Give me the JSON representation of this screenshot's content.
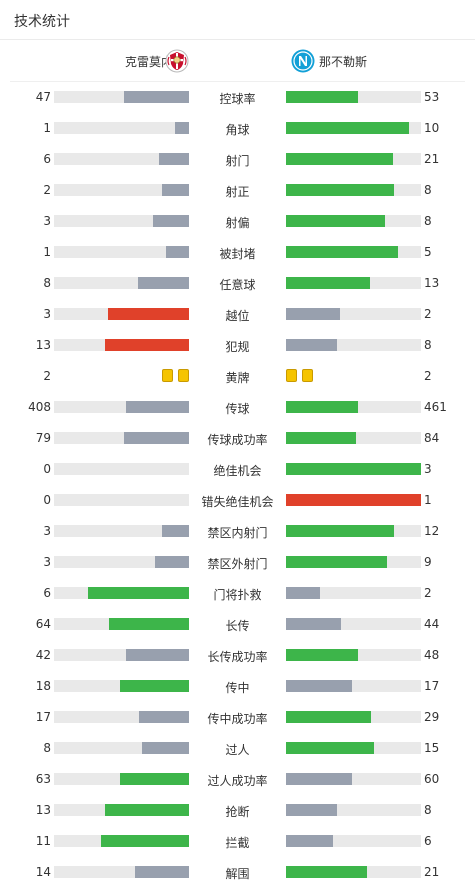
{
  "page_title": "技术统计",
  "home_team": {
    "name": "克雷莫内塞",
    "logo_icon": "cremonese-crest-icon"
  },
  "away_team": {
    "name": "那不勒斯",
    "logo_icon": "napoli-crest-icon"
  },
  "colors": {
    "lead": "#3db54a",
    "neutral": "#98a0ae",
    "bad": "#e0412a",
    "track": "#e9e9e9",
    "card": "#f5c400"
  },
  "stats": [
    {
      "label": "控球率",
      "home": "47",
      "away": "53",
      "home_frac": 0.48,
      "away_frac": 0.53,
      "home_color": "neutral",
      "away_color": "lead"
    },
    {
      "label": "角球",
      "home": "1",
      "away": "10",
      "home_frac": 0.1,
      "away_frac": 0.91,
      "home_color": "neutral",
      "away_color": "lead"
    },
    {
      "label": "射门",
      "home": "6",
      "away": "21",
      "home_frac": 0.22,
      "away_frac": 0.79,
      "home_color": "neutral",
      "away_color": "lead"
    },
    {
      "label": "射正",
      "home": "2",
      "away": "8",
      "home_frac": 0.2,
      "away_frac": 0.8,
      "home_color": "neutral",
      "away_color": "lead"
    },
    {
      "label": "射偏",
      "home": "3",
      "away": "8",
      "home_frac": 0.27,
      "away_frac": 0.73,
      "home_color": "neutral",
      "away_color": "lead"
    },
    {
      "label": "被封堵",
      "home": "1",
      "away": "5",
      "home_frac": 0.17,
      "away_frac": 0.83,
      "home_color": "neutral",
      "away_color": "lead"
    },
    {
      "label": "任意球",
      "home": "8",
      "away": "13",
      "home_frac": 0.38,
      "away_frac": 0.62,
      "home_color": "neutral",
      "away_color": "lead"
    },
    {
      "label": "越位",
      "home": "3",
      "away": "2",
      "home_frac": 0.6,
      "away_frac": 0.4,
      "home_color": "bad",
      "away_color": "neutral"
    },
    {
      "label": "犯规",
      "home": "13",
      "away": "8",
      "home_frac": 0.62,
      "away_frac": 0.38,
      "home_color": "bad",
      "away_color": "neutral"
    },
    {
      "label": "黄牌",
      "home": "2",
      "away": "2",
      "cards": true,
      "home_cards": 2,
      "away_cards": 2
    },
    {
      "label": "传球",
      "home": "408",
      "away": "461",
      "home_frac": 0.47,
      "away_frac": 0.53,
      "home_color": "neutral",
      "away_color": "lead"
    },
    {
      "label": "传球成功率",
      "home": "79",
      "away": "84",
      "home_frac": 0.48,
      "away_frac": 0.52,
      "home_color": "neutral",
      "away_color": "lead"
    },
    {
      "label": "绝佳机会",
      "home": "0",
      "away": "3",
      "home_frac": 0.0,
      "away_frac": 1.0,
      "home_color": "neutral",
      "away_color": "lead"
    },
    {
      "label": "错失绝佳机会",
      "home": "0",
      "away": "1",
      "home_frac": 0.0,
      "away_frac": 1.0,
      "home_color": "neutral",
      "away_color": "bad"
    },
    {
      "label": "禁区内射门",
      "home": "3",
      "away": "12",
      "home_frac": 0.2,
      "away_frac": 0.8,
      "home_color": "neutral",
      "away_color": "lead"
    },
    {
      "label": "禁区外射门",
      "home": "3",
      "away": "9",
      "home_frac": 0.25,
      "away_frac": 0.75,
      "home_color": "neutral",
      "away_color": "lead"
    },
    {
      "label": "门将扑救",
      "home": "6",
      "away": "2",
      "home_frac": 0.75,
      "away_frac": 0.25,
      "home_color": "lead",
      "away_color": "neutral"
    },
    {
      "label": "长传",
      "home": "64",
      "away": "44",
      "home_frac": 0.59,
      "away_frac": 0.41,
      "home_color": "lead",
      "away_color": "neutral"
    },
    {
      "label": "长传成功率",
      "home": "42",
      "away": "48",
      "home_frac": 0.47,
      "away_frac": 0.53,
      "home_color": "neutral",
      "away_color": "lead"
    },
    {
      "label": "传中",
      "home": "18",
      "away": "17",
      "home_frac": 0.51,
      "away_frac": 0.49,
      "home_color": "lead",
      "away_color": "neutral"
    },
    {
      "label": "传中成功率",
      "home": "17",
      "away": "29",
      "home_frac": 0.37,
      "away_frac": 0.63,
      "home_color": "neutral",
      "away_color": "lead"
    },
    {
      "label": "过人",
      "home": "8",
      "away": "15",
      "home_frac": 0.35,
      "away_frac": 0.65,
      "home_color": "neutral",
      "away_color": "lead"
    },
    {
      "label": "过人成功率",
      "home": "63",
      "away": "60",
      "home_frac": 0.51,
      "away_frac": 0.49,
      "home_color": "lead",
      "away_color": "neutral"
    },
    {
      "label": "抢断",
      "home": "13",
      "away": "8",
      "home_frac": 0.62,
      "away_frac": 0.38,
      "home_color": "lead",
      "away_color": "neutral"
    },
    {
      "label": "拦截",
      "home": "11",
      "away": "6",
      "home_frac": 0.65,
      "away_frac": 0.35,
      "home_color": "lead",
      "away_color": "neutral"
    },
    {
      "label": "解围",
      "home": "14",
      "away": "21",
      "home_frac": 0.4,
      "away_frac": 0.6,
      "home_color": "neutral",
      "away_color": "lead"
    }
  ]
}
